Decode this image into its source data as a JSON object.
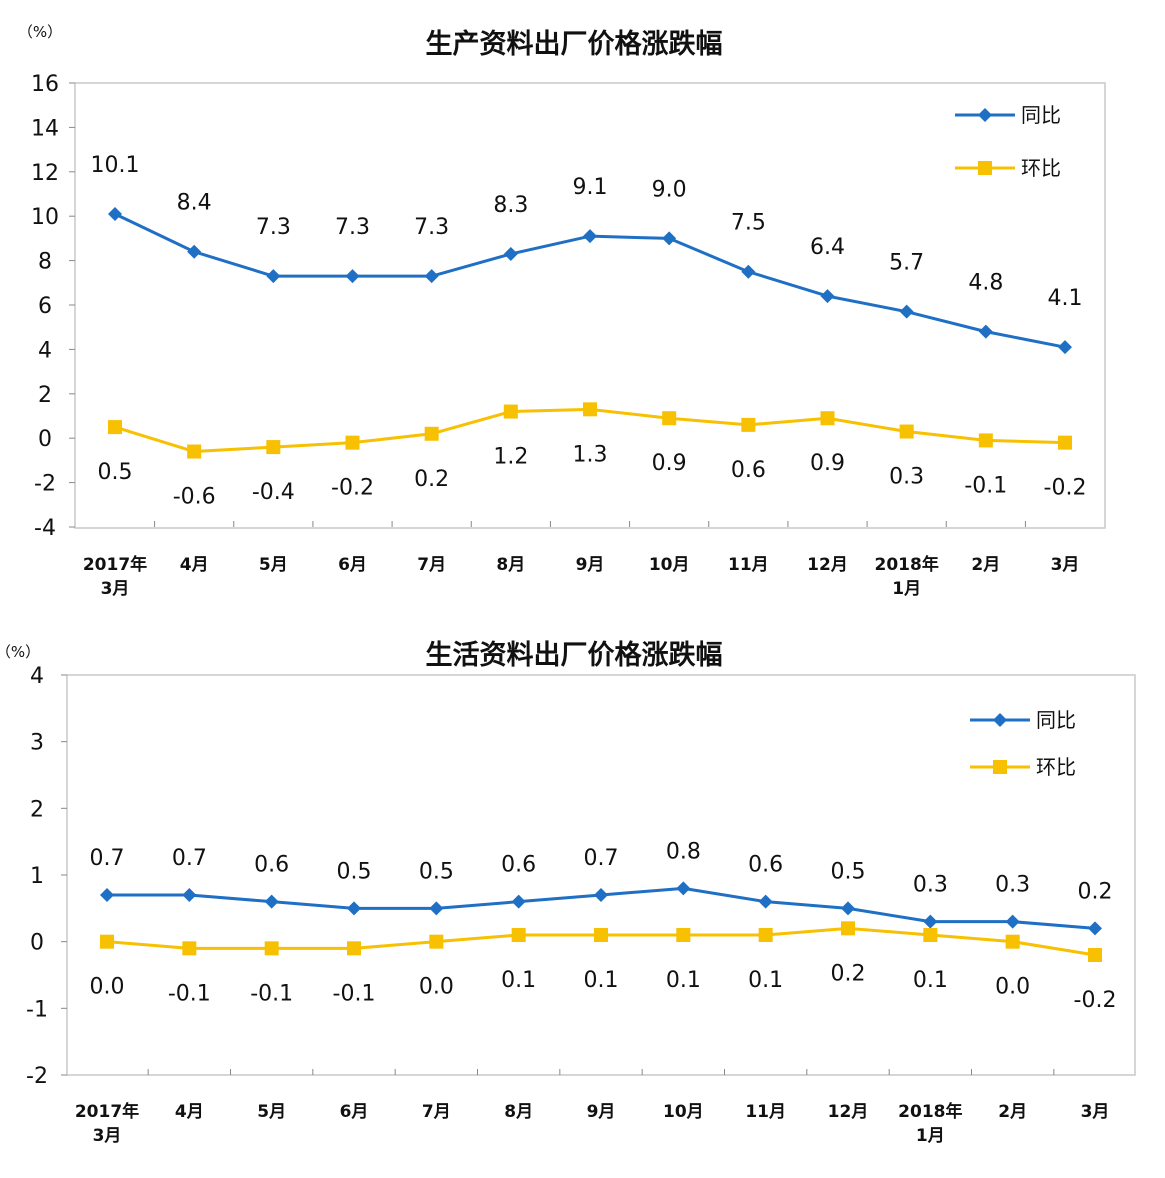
{
  "chart_data": [
    {
      "type": "line",
      "title": "生产资料出厂价格涨跌幅",
      "unit_label": "（%）",
      "categories": [
        [
          "2017年",
          "3月"
        ],
        [
          "4月"
        ],
        [
          "5月"
        ],
        [
          "6月"
        ],
        [
          "7月"
        ],
        [
          "8月"
        ],
        [
          "9月"
        ],
        [
          "10月"
        ],
        [
          "11月"
        ],
        [
          "12月"
        ],
        [
          "2018年",
          "1月"
        ],
        [
          "2月"
        ],
        [
          "3月"
        ]
      ],
      "series": [
        {
          "name": "同比",
          "color": "#1f6fc5",
          "marker": "diamond",
          "values": [
            10.1,
            8.4,
            7.3,
            7.3,
            7.3,
            8.3,
            9.1,
            9.0,
            7.5,
            6.4,
            5.7,
            4.8,
            4.1
          ],
          "labels": [
            "10.1",
            "8.4",
            "7.3",
            "7.3",
            "7.3",
            "8.3",
            "9.1",
            "9.0",
            "7.5",
            "6.4",
            "5.7",
            "4.8",
            "4.1"
          ],
          "label_position": "above"
        },
        {
          "name": "环比",
          "color": "#f7c000",
          "marker": "square",
          "values": [
            0.5,
            -0.6,
            -0.4,
            -0.2,
            0.2,
            1.2,
            1.3,
            0.9,
            0.6,
            0.9,
            0.3,
            -0.1,
            -0.2
          ],
          "labels": [
            "0.5",
            "-0.6",
            "-0.4",
            "-0.2",
            "0.2",
            "1.2",
            "1.3",
            "0.9",
            "0.6",
            "0.9",
            "0.3",
            "-0.1",
            "-0.2"
          ],
          "label_position": "below"
        }
      ],
      "ylim": [
        -4,
        16
      ],
      "yticks": [
        -4,
        -2,
        0,
        2,
        4,
        6,
        8,
        10,
        12,
        14,
        16
      ],
      "ytick_labels": [
        "-4",
        "-2",
        "0",
        "2",
        "4",
        "6",
        "8",
        "10",
        "12",
        "14",
        "16"
      ],
      "legend": "top-right",
      "grid": false
    },
    {
      "type": "line",
      "title": "生活资料出厂价格涨跌幅",
      "unit_label": "（%）",
      "categories": [
        [
          "2017年",
          "3月"
        ],
        [
          "4月"
        ],
        [
          "5月"
        ],
        [
          "6月"
        ],
        [
          "7月"
        ],
        [
          "8月"
        ],
        [
          "9月"
        ],
        [
          "10月"
        ],
        [
          "11月"
        ],
        [
          "12月"
        ],
        [
          "2018年",
          "1月"
        ],
        [
          "2月"
        ],
        [
          "3月"
        ]
      ],
      "series": [
        {
          "name": "同比",
          "color": "#1f6fc5",
          "marker": "diamond",
          "values": [
            0.7,
            0.7,
            0.6,
            0.5,
            0.5,
            0.6,
            0.7,
            0.8,
            0.6,
            0.5,
            0.3,
            0.3,
            0.2
          ],
          "labels": [
            "0.7",
            "0.7",
            "0.6",
            "0.5",
            "0.5",
            "0.6",
            "0.7",
            "0.8",
            "0.6",
            "0.5",
            "0.3",
            "0.3",
            "0.2"
          ],
          "label_position": "above"
        },
        {
          "name": "环比",
          "color": "#f7c000",
          "marker": "square",
          "values": [
            0.0,
            -0.1,
            -0.1,
            -0.1,
            0.0,
            0.1,
            0.1,
            0.1,
            0.1,
            0.2,
            0.1,
            0.0,
            -0.2
          ],
          "labels": [
            "0.0",
            "-0.1",
            "-0.1",
            "-0.1",
            "0.0",
            "0.1",
            "0.1",
            "0.1",
            "0.1",
            "0.2",
            "0.1",
            "0.0",
            "-0.2"
          ],
          "label_position": "below"
        }
      ],
      "ylim": [
        -2,
        4
      ],
      "yticks": [
        -2,
        -1,
        0,
        1,
        2,
        3,
        4
      ],
      "ytick_labels": [
        "-2",
        "-1",
        "0",
        "1",
        "2",
        "3",
        "4"
      ],
      "legend": "top-right",
      "grid": false
    }
  ]
}
